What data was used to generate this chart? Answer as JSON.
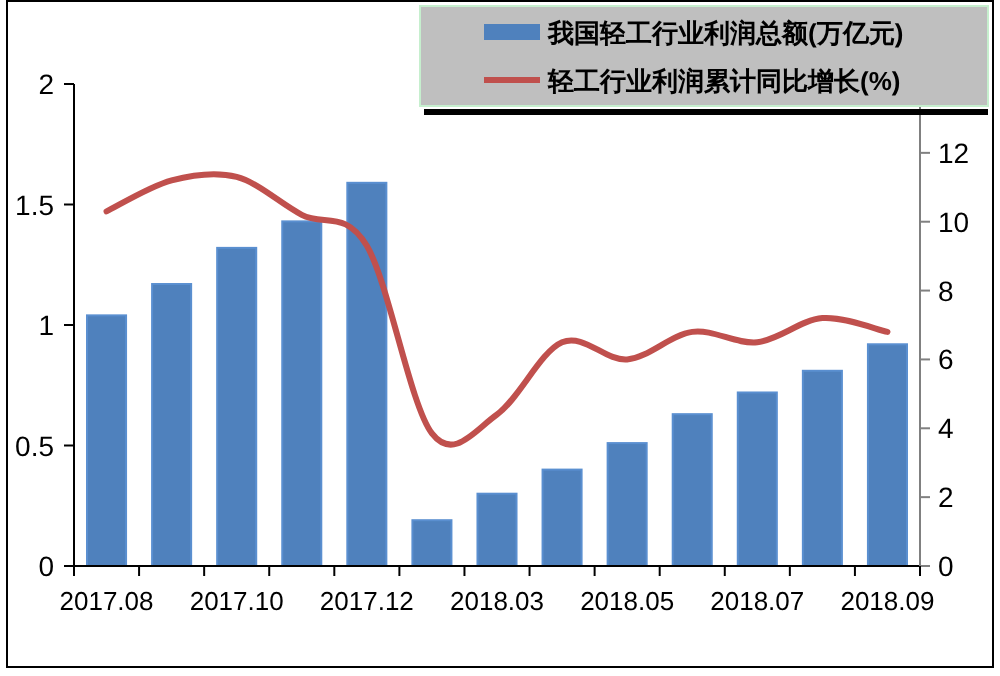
{
  "chart_data": {
    "type": "bar",
    "categories": [
      "2017.08",
      null,
      "2017.10",
      null,
      "2017.12",
      null,
      "2018.03",
      null,
      "2018.05",
      null,
      "2018.07",
      null,
      "2018.09"
    ],
    "series": [
      {
        "name": "我国轻工行业利润总额(万亿元)",
        "color": "#4f81bd",
        "values": [
          1.04,
          1.17,
          1.32,
          1.43,
          1.59,
          0.19,
          0.3,
          0.4,
          0.51,
          0.63,
          0.72,
          0.81,
          0.92
        ]
      },
      {
        "name": "轻工行业利润累计同比增长(%)",
        "type": "line",
        "axis": "y2",
        "color": "#c0504d",
        "values": [
          10.3,
          11.2,
          11.3,
          10.2,
          9.3,
          3.85,
          4.4,
          6.5,
          6.0,
          6.8,
          6.5,
          7.2,
          6.8
        ]
      }
    ],
    "ylim": [
      0,
      2
    ],
    "yticks": [
      0,
      0.5,
      1,
      1.5,
      2
    ],
    "y2lim": [
      0,
      14
    ],
    "y2ticks": [
      0,
      2,
      4,
      6,
      8,
      10,
      12
    ],
    "legend": "top right",
    "grid": false,
    "marker": "none",
    "line_style": "solid"
  }
}
